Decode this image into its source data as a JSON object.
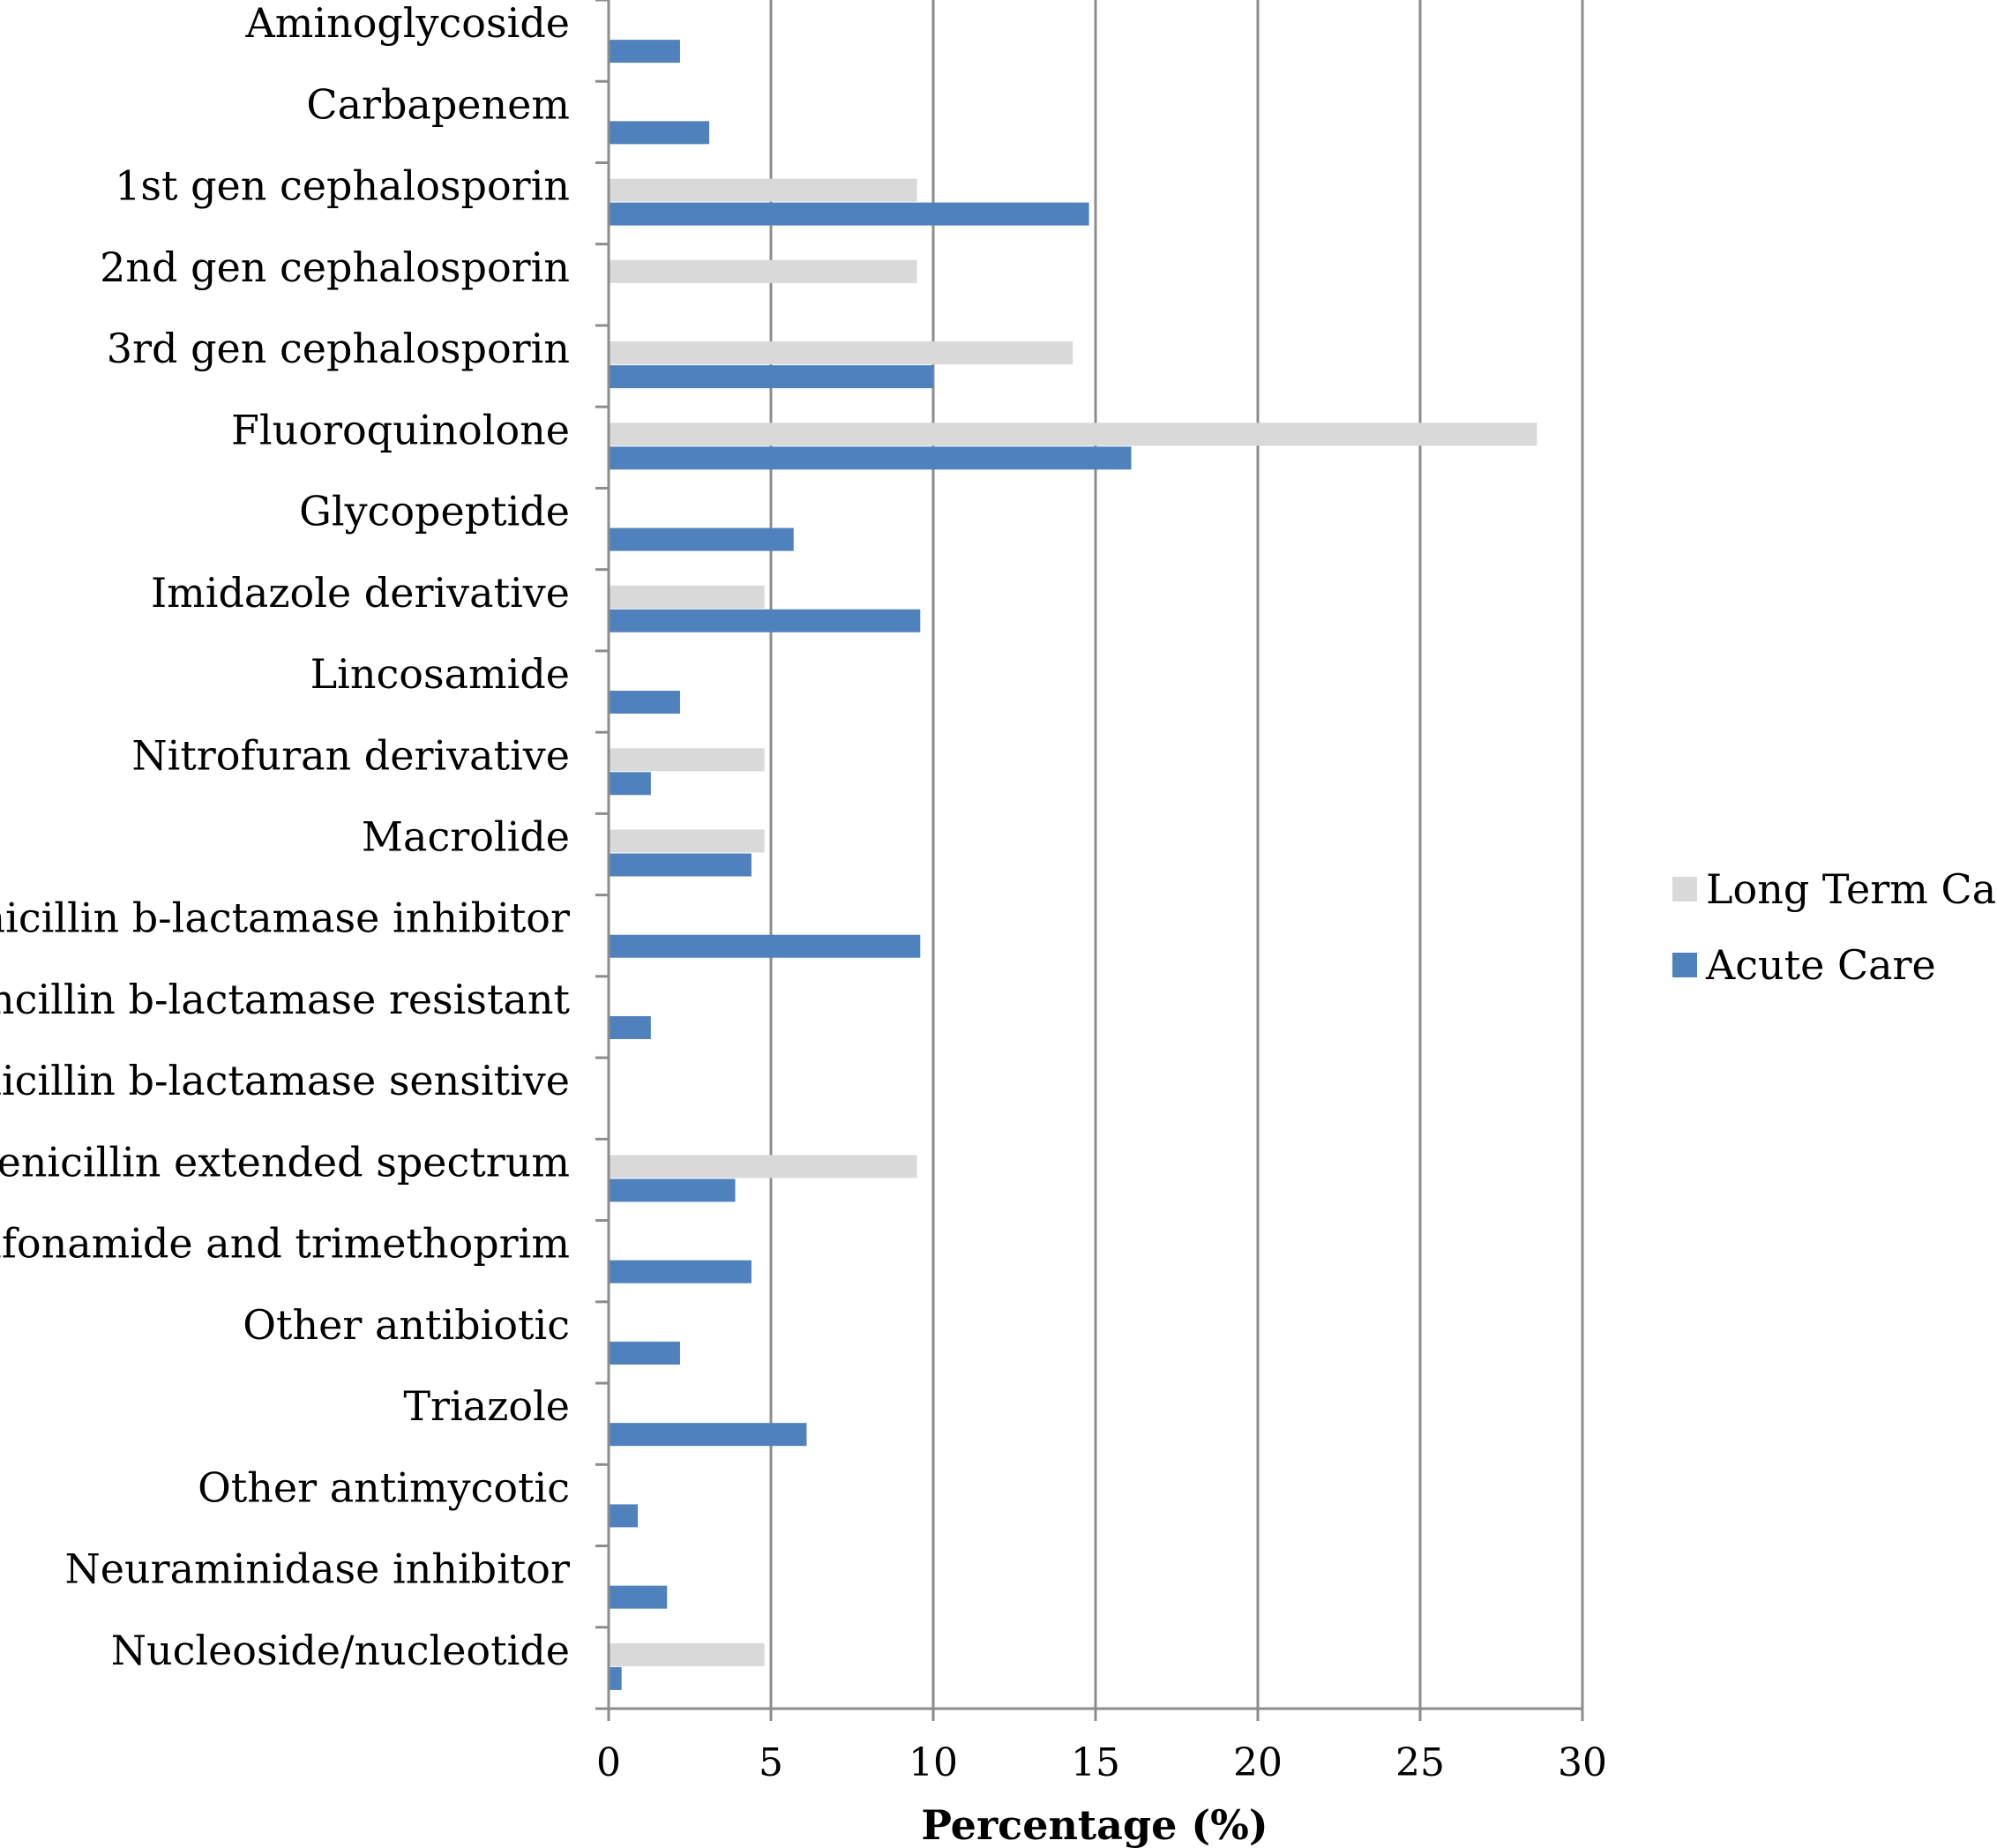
{
  "chart_data": {
    "type": "bar",
    "orientation": "horizontal",
    "categories": [
      "Aminoglycoside",
      "Carbapenem",
      "1st gen cephalosporin",
      "2nd gen cephalosporin",
      "3rd gen cephalosporin",
      "Fluoroquinolone",
      "Glycopeptide",
      "Imidazole derivative",
      "Lincosamide",
      "Nitrofuran derivative",
      "Macrolide",
      "Penicillin b-lactamase inhibitor",
      "Pencillin b-lactamase resistant",
      "Penicillin b-lactamase sensitive",
      "Penicillin extended spectrum",
      "Sulfonamide and trimethoprim",
      "Other antibiotic",
      "Triazole",
      "Other antimycotic",
      "Neuraminidase inhibitor",
      "Nucleoside/nucleotide"
    ],
    "series": [
      {
        "name": "Long Term Care",
        "color": "#d9d9d9",
        "values": [
          0,
          0,
          9.5,
          9.5,
          14.3,
          28.6,
          0,
          4.8,
          0,
          4.8,
          4.8,
          0,
          0,
          0,
          9.5,
          0,
          0,
          0,
          0,
          0,
          4.8
        ]
      },
      {
        "name": "Acute Care",
        "color": "#4f81bd",
        "values": [
          2.2,
          3.1,
          14.8,
          0,
          10.0,
          16.1,
          5.7,
          9.6,
          2.2,
          1.3,
          4.4,
          9.6,
          1.3,
          0,
          3.9,
          4.4,
          2.2,
          6.1,
          0.9,
          1.8,
          0.4
        ]
      }
    ],
    "xlabel": "Percentage (%)",
    "ylabel": "",
    "xlim": [
      0,
      30
    ],
    "xticks": [
      "0",
      "5",
      "10",
      "15",
      "20",
      "25",
      "30"
    ],
    "xtick_values": [
      0,
      5,
      10,
      15,
      20,
      25,
      30
    ],
    "grid": "vertical major gridlines",
    "legend_position": "right"
  }
}
